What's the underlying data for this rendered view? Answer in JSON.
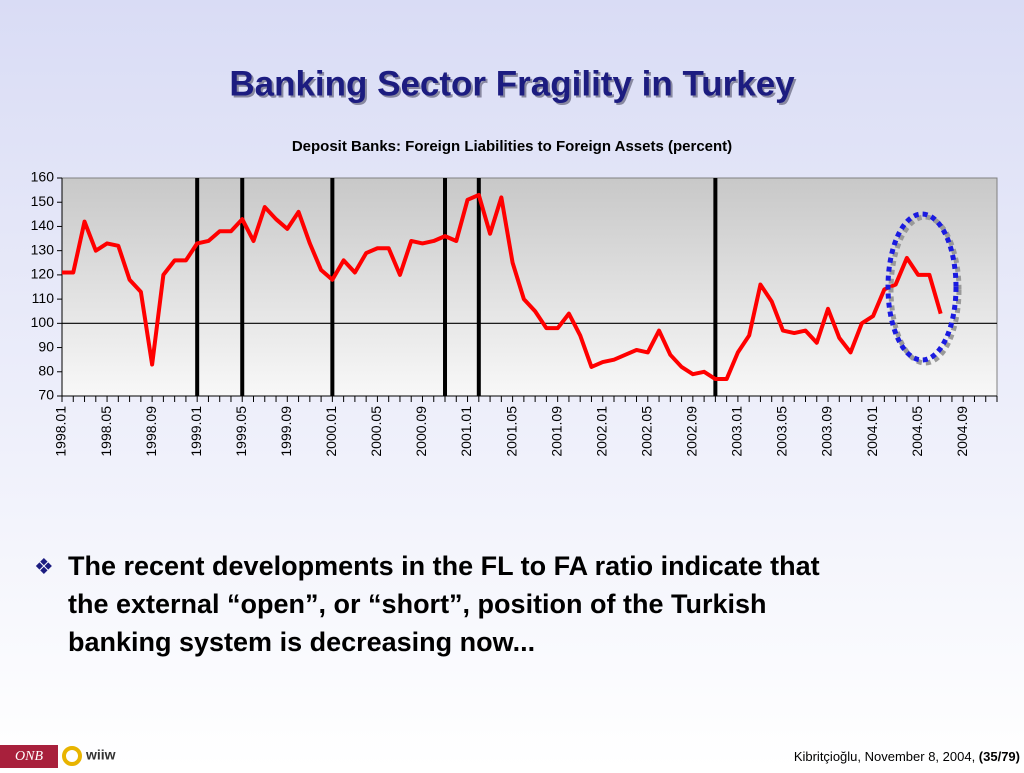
{
  "title": "Banking Sector Fragility in Turkey",
  "chart_data": {
    "type": "line",
    "title": "Deposit Banks: Foreign Liabilities to Foreign Assets (percent)",
    "categories": [
      "1998.01",
      null,
      null,
      null,
      "1998.05",
      null,
      null,
      null,
      "1998.09",
      null,
      null,
      null,
      "1999.01",
      null,
      null,
      null,
      "1999.05",
      null,
      null,
      null,
      "1999.09",
      null,
      null,
      null,
      "2000.01",
      null,
      null,
      null,
      "2000.05",
      null,
      null,
      null,
      "2000.09",
      null,
      null,
      null,
      "2001.01",
      null,
      null,
      null,
      "2001.05",
      null,
      null,
      null,
      "2001.09",
      null,
      null,
      null,
      "2002.01",
      null,
      null,
      null,
      "2002.05",
      null,
      null,
      null,
      "2002.09",
      null,
      null,
      null,
      "2003.01",
      null,
      null,
      null,
      "2003.05",
      null,
      null,
      null,
      "2003.09",
      null,
      null,
      null,
      "2004.01",
      null,
      null,
      null,
      "2004.05",
      null,
      null,
      null,
      "2004.09",
      null,
      null,
      null
    ],
    "series": [
      {
        "color": "#ff0000",
        "values": [
          121,
          121,
          142,
          130,
          133,
          132,
          118,
          113,
          83,
          120,
          126,
          126,
          133,
          134,
          138,
          138,
          143,
          134,
          148,
          143,
          139,
          146,
          133,
          122,
          118,
          126,
          121,
          129,
          131,
          131,
          120,
          134,
          133,
          134,
          136,
          134,
          151,
          153,
          137,
          152,
          125,
          110,
          105,
          98,
          98,
          104,
          95,
          82,
          84,
          85,
          87,
          89,
          88,
          97,
          87,
          82,
          79,
          80,
          77,
          77,
          88,
          95,
          116,
          109,
          97,
          96,
          97,
          92,
          106,
          94,
          88,
          100,
          103,
          114,
          116,
          127,
          120,
          120,
          104,
          null,
          null,
          null,
          null,
          null
        ]
      }
    ],
    "event_lines": [
      12,
      16,
      24,
      34,
      37,
      58
    ],
    "hline": 100,
    "ylim": [
      70,
      160
    ],
    "yticks": [
      70,
      80,
      90,
      100,
      110,
      120,
      130,
      140,
      150,
      160
    ]
  },
  "bullet": "❖",
  "text_lines": [
    "The recent developments in the FL to FA ratio indicate that",
    "the external “open”, or “short”, position of the Turkish",
    "banking system is decreasing now..."
  ],
  "footer": {
    "logo1": "ONB",
    "logo2": "wiiw",
    "text": "Kibritçioğlu, November 8, 2004, ",
    "page": "(35/79)"
  }
}
